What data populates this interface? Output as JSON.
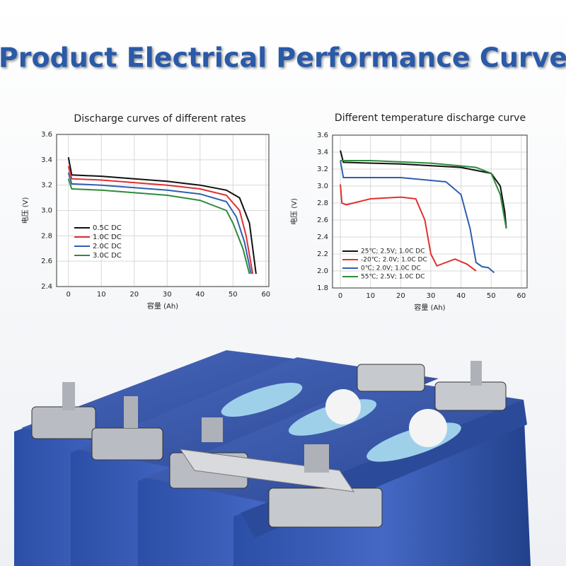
{
  "title": "Product Electrical Performance Curve",
  "chart_data": [
    {
      "type": "line",
      "title": "Discharge curves of different rates",
      "x_label": "容量 (Ah)",
      "y_label": "电压 (V)",
      "xlim": [
        -3.6,
        60.9
      ],
      "xticks": [
        0,
        10,
        20,
        30,
        40,
        50,
        60
      ],
      "ylim": [
        2.4,
        3.6
      ],
      "yticks": [
        2.4,
        2.6,
        2.8,
        {
          "value": 3,
          "label": "3.0"
        },
        3.2,
        3.4,
        3.6
      ],
      "grid": true,
      "legend": "lower-left",
      "series": [
        {
          "name": "0.5C DC",
          "color": "#111111",
          "x": [
            0,
            1,
            10,
            20,
            30,
            40,
            48,
            52,
            55,
            57
          ],
          "values": [
            3.42,
            3.28,
            3.27,
            3.25,
            3.23,
            3.2,
            3.16,
            3.1,
            2.9,
            2.5
          ]
        },
        {
          "name": "1.0C DC",
          "color": "#e03030",
          "x": [
            0,
            1,
            10,
            20,
            30,
            40,
            48,
            52,
            54,
            56
          ],
          "values": [
            3.35,
            3.25,
            3.24,
            3.22,
            3.2,
            3.17,
            3.12,
            3.0,
            2.8,
            2.5
          ]
        },
        {
          "name": "2.0C DC",
          "color": "#2f5fb0",
          "x": [
            0,
            1,
            10,
            20,
            30,
            40,
            48,
            51,
            53.5,
            55.5
          ],
          "values": [
            3.3,
            3.21,
            3.2,
            3.18,
            3.16,
            3.13,
            3.07,
            2.95,
            2.75,
            2.5
          ]
        },
        {
          "name": "3.0C DC",
          "color": "#2e8b3a",
          "x": [
            0,
            1,
            10,
            20,
            30,
            40,
            48,
            50,
            53,
            55
          ],
          "values": [
            3.25,
            3.17,
            3.16,
            3.14,
            3.12,
            3.08,
            3.0,
            2.9,
            2.7,
            2.5
          ]
        }
      ]
    },
    {
      "type": "line",
      "title": "Different temperature discharge curve",
      "x_label": "容量 (Ah)",
      "y_label": "电压 (V)",
      "xlim": [
        -2.6,
        61.9
      ],
      "xticks": [
        0,
        10,
        20,
        30,
        40,
        50,
        60
      ],
      "ylim": [
        1.8,
        3.6
      ],
      "yticks": [
        1.8,
        {
          "value": 2,
          "label": "2.0"
        },
        2.2,
        2.4,
        2.6,
        2.8,
        {
          "value": 3,
          "label": "3.0"
        },
        3.2,
        3.4,
        3.6
      ],
      "grid": true,
      "legend": "lower-left",
      "series": [
        {
          "name": "25℃; 2.5V; 1.0C DC",
          "color": "#111111",
          "x": [
            0,
            1,
            20,
            40,
            50,
            53,
            54.5,
            55
          ],
          "values": [
            3.42,
            3.28,
            3.26,
            3.22,
            3.15,
            3.0,
            2.7,
            2.5
          ]
        },
        {
          "name": "-20℃; 2.0V; 1.0C DC",
          "color": "#e03030",
          "x": [
            0,
            0.5,
            2,
            10,
            20,
            25,
            28,
            30,
            32,
            35,
            38,
            42,
            45
          ],
          "values": [
            3.02,
            2.8,
            2.78,
            2.85,
            2.87,
            2.85,
            2.6,
            2.2,
            2.06,
            2.1,
            2.14,
            2.08,
            2.0
          ]
        },
        {
          "name": "0℃; 2.0V; 1.0C DC",
          "color": "#2f5fb0",
          "x": [
            0,
            1,
            20,
            35,
            40,
            43,
            45,
            47,
            49,
            51
          ],
          "values": [
            3.3,
            3.1,
            3.1,
            3.05,
            2.9,
            2.5,
            2.1,
            2.05,
            2.04,
            1.98
          ]
        },
        {
          "name": "55℃; 2.5V; 1.0C DC",
          "color": "#2e8b3a",
          "x": [
            0,
            10,
            30,
            45,
            50,
            53,
            55
          ],
          "values": [
            3.3,
            3.3,
            3.27,
            3.22,
            3.15,
            2.9,
            2.5
          ]
        }
      ]
    }
  ]
}
